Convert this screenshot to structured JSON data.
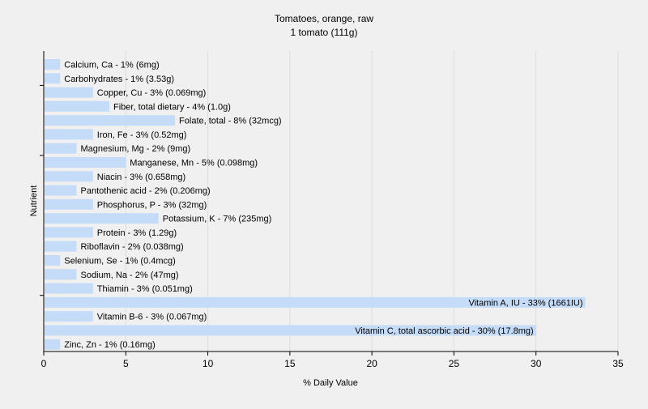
{
  "chart_data": {
    "type": "bar",
    "orientation": "horizontal",
    "title": "Tomatoes, orange, raw",
    "subtitle": "1 tomato (111g)",
    "xlabel": "% Daily Value",
    "ylabel": "Nutrient",
    "xlim": [
      0,
      35
    ],
    "xticks": [
      0,
      5,
      10,
      15,
      20,
      25,
      30,
      35
    ],
    "grid": true,
    "colors": {
      "bar": "#c5dcf8",
      "grid": "#dcdcdc",
      "axis": "#000000",
      "background": "#f0f0f0"
    },
    "categories": [
      "Calcium, Ca",
      "Carbohydrates",
      "Copper, Cu",
      "Fiber, total dietary",
      "Folate, total",
      "Iron, Fe",
      "Magnesium, Mg",
      "Manganese, Mn",
      "Niacin",
      "Pantothenic acid",
      "Phosphorus, P",
      "Potassium, K",
      "Protein",
      "Riboflavin",
      "Selenium, Se",
      "Sodium, Na",
      "Thiamin",
      "Vitamin A, IU",
      "Vitamin B-6",
      "Vitamin C, total ascorbic acid",
      "Zinc, Zn"
    ],
    "values": [
      1,
      1,
      3,
      4,
      8,
      3,
      2,
      5,
      3,
      2,
      3,
      7,
      3,
      2,
      1,
      2,
      3,
      33,
      3,
      30,
      1
    ],
    "labels": [
      "Calcium, Ca - 1% (6mg)",
      "Carbohydrates - 1% (3.53g)",
      "Copper, Cu - 3% (0.069mg)",
      "Fiber, total dietary - 4% (1.0g)",
      "Folate, total - 8% (32mcg)",
      "Iron, Fe - 3% (0.52mg)",
      "Magnesium, Mg - 2% (9mg)",
      "Manganese, Mn - 5% (0.098mg)",
      "Niacin - 3% (0.658mg)",
      "Pantothenic acid - 2% (0.206mg)",
      "Phosphorus, P - 3% (32mg)",
      "Potassium, K - 7% (235mg)",
      "Protein - 3% (1.29g)",
      "Riboflavin - 2% (0.038mg)",
      "Selenium, Se - 1% (0.4mcg)",
      "Sodium, Na - 2% (47mg)",
      "Thiamin - 3% (0.051mg)",
      "Vitamin A, IU - 33% (1661IU)",
      "Vitamin B-6 - 3% (0.067mg)",
      "Vitamin C, total ascorbic acid - 30% (17.8mg)",
      "Zinc, Zn - 1% (0.16mg)"
    ]
  }
}
